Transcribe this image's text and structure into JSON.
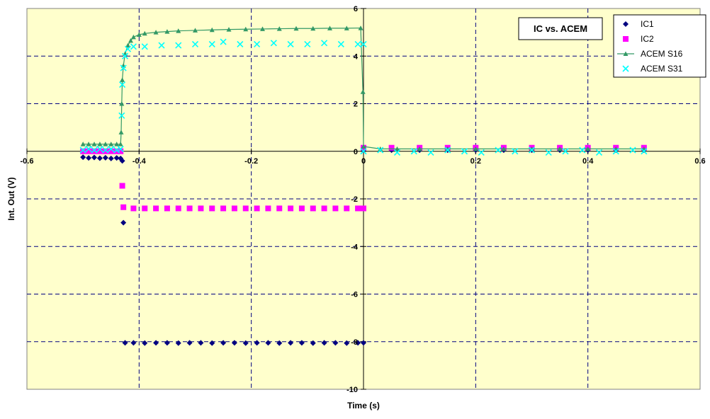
{
  "chart_data": {
    "type": "scatter",
    "title": "IC vs. ACEM",
    "xlabel": "Time (s)",
    "ylabel": "Int. Out (V)",
    "xlim": [
      -0.6,
      0.6
    ],
    "ylim": [
      -10,
      6
    ],
    "x_ticks": [
      -0.6,
      -0.4,
      -0.2,
      0,
      0.2,
      0.4,
      0.6
    ],
    "x_tick_labels": [
      "-0.6",
      "-0.4",
      "-0.2",
      "0",
      "0.2",
      "0.4",
      "0.6"
    ],
    "y_ticks": [
      -10,
      -8,
      -6,
      -4,
      -2,
      0,
      2,
      4,
      6
    ],
    "y_tick_labels": [
      "-10",
      "-8",
      "-6",
      "-4",
      "-2",
      "0",
      "2",
      "4",
      "6"
    ],
    "grid": true,
    "legend_position": "top-right",
    "plot_background": "#ffffcc",
    "series": [
      {
        "name": "IC1",
        "color": "#000080",
        "marker": "diamond",
        "points": [
          [
            -0.5,
            -0.25
          ],
          [
            -0.49,
            -0.28
          ],
          [
            -0.48,
            -0.26
          ],
          [
            -0.47,
            -0.29
          ],
          [
            -0.46,
            -0.27
          ],
          [
            -0.45,
            -0.3
          ],
          [
            -0.44,
            -0.28
          ],
          [
            -0.433,
            -0.3
          ],
          [
            -0.43,
            -0.4
          ],
          [
            -0.428,
            -3.0
          ],
          [
            -0.425,
            -8.05
          ],
          [
            -0.41,
            -8.05
          ],
          [
            -0.39,
            -8.06
          ],
          [
            -0.37,
            -8.05
          ],
          [
            -0.35,
            -8.05
          ],
          [
            -0.33,
            -8.06
          ],
          [
            -0.31,
            -8.05
          ],
          [
            -0.29,
            -8.05
          ],
          [
            -0.27,
            -8.06
          ],
          [
            -0.25,
            -8.05
          ],
          [
            -0.23,
            -8.05
          ],
          [
            -0.21,
            -8.06
          ],
          [
            -0.19,
            -8.05
          ],
          [
            -0.17,
            -8.05
          ],
          [
            -0.15,
            -8.06
          ],
          [
            -0.13,
            -8.05
          ],
          [
            -0.11,
            -8.05
          ],
          [
            -0.09,
            -8.06
          ],
          [
            -0.07,
            -8.05
          ],
          [
            -0.05,
            -8.05
          ],
          [
            -0.03,
            -8.06
          ],
          [
            -0.01,
            -8.05
          ],
          [
            0,
            -8.05
          ],
          [
            0.0,
            0.05
          ],
          [
            0.05,
            0.05
          ],
          [
            0.1,
            0.05
          ],
          [
            0.15,
            0.05
          ],
          [
            0.2,
            0.05
          ],
          [
            0.25,
            0.05
          ],
          [
            0.3,
            0.05
          ],
          [
            0.35,
            0.05
          ],
          [
            0.4,
            0.05
          ],
          [
            0.45,
            0.05
          ],
          [
            0.5,
            0.05
          ]
        ]
      },
      {
        "name": "IC2",
        "color": "#ff00ff",
        "marker": "square",
        "points": [
          [
            -0.5,
            0.0
          ],
          [
            -0.49,
            0.0
          ],
          [
            -0.48,
            0.0
          ],
          [
            -0.47,
            0.0
          ],
          [
            -0.46,
            0.0
          ],
          [
            -0.45,
            0.0
          ],
          [
            -0.44,
            0.0
          ],
          [
            -0.433,
            0.0
          ],
          [
            -0.43,
            -1.45
          ],
          [
            -0.428,
            -2.35
          ],
          [
            -0.41,
            -2.4
          ],
          [
            -0.39,
            -2.4
          ],
          [
            -0.37,
            -2.4
          ],
          [
            -0.35,
            -2.4
          ],
          [
            -0.33,
            -2.4
          ],
          [
            -0.31,
            -2.4
          ],
          [
            -0.29,
            -2.4
          ],
          [
            -0.27,
            -2.4
          ],
          [
            -0.25,
            -2.4
          ],
          [
            -0.23,
            -2.4
          ],
          [
            -0.21,
            -2.4
          ],
          [
            -0.19,
            -2.4
          ],
          [
            -0.17,
            -2.4
          ],
          [
            -0.15,
            -2.4
          ],
          [
            -0.13,
            -2.4
          ],
          [
            -0.11,
            -2.4
          ],
          [
            -0.09,
            -2.4
          ],
          [
            -0.07,
            -2.4
          ],
          [
            -0.05,
            -2.4
          ],
          [
            -0.03,
            -2.4
          ],
          [
            -0.01,
            -2.4
          ],
          [
            0,
            -2.4
          ],
          [
            0.0,
            0.15
          ],
          [
            0.05,
            0.15
          ],
          [
            0.1,
            0.15
          ],
          [
            0.15,
            0.15
          ],
          [
            0.2,
            0.15
          ],
          [
            0.25,
            0.15
          ],
          [
            0.3,
            0.15
          ],
          [
            0.35,
            0.15
          ],
          [
            0.4,
            0.15
          ],
          [
            0.45,
            0.15
          ],
          [
            0.5,
            0.15
          ]
        ]
      },
      {
        "name": "ACEM S16",
        "color": "#339966",
        "marker": "triangle",
        "line": true,
        "points": [
          [
            -0.5,
            0.3
          ],
          [
            -0.49,
            0.3
          ],
          [
            -0.48,
            0.3
          ],
          [
            -0.47,
            0.3
          ],
          [
            -0.46,
            0.3
          ],
          [
            -0.45,
            0.3
          ],
          [
            -0.44,
            0.3
          ],
          [
            -0.433,
            0.3
          ],
          [
            -0.432,
            0.8
          ],
          [
            -0.431,
            2.0
          ],
          [
            -0.43,
            3.0
          ],
          [
            -0.428,
            3.6
          ],
          [
            -0.425,
            4.1
          ],
          [
            -0.42,
            4.45
          ],
          [
            -0.415,
            4.65
          ],
          [
            -0.41,
            4.8
          ],
          [
            -0.4,
            4.9
          ],
          [
            -0.39,
            4.95
          ],
          [
            -0.37,
            5.0
          ],
          [
            -0.35,
            5.03
          ],
          [
            -0.33,
            5.06
          ],
          [
            -0.3,
            5.08
          ],
          [
            -0.27,
            5.1
          ],
          [
            -0.24,
            5.12
          ],
          [
            -0.21,
            5.13
          ],
          [
            -0.18,
            5.14
          ],
          [
            -0.15,
            5.15
          ],
          [
            -0.12,
            5.16
          ],
          [
            -0.09,
            5.16
          ],
          [
            -0.06,
            5.17
          ],
          [
            -0.03,
            5.17
          ],
          [
            -0.005,
            5.18
          ],
          [
            -0.001,
            2.5
          ],
          [
            0.0,
            0.2
          ],
          [
            0.03,
            0.1
          ],
          [
            0.06,
            0.1
          ],
          [
            0.1,
            0.1
          ],
          [
            0.15,
            0.1
          ],
          [
            0.2,
            0.1
          ],
          [
            0.25,
            0.1
          ],
          [
            0.3,
            0.1
          ],
          [
            0.35,
            0.1
          ],
          [
            0.4,
            0.1
          ],
          [
            0.45,
            0.1
          ],
          [
            0.5,
            0.1
          ]
        ]
      },
      {
        "name": "ACEM S31",
        "color": "#00ffff",
        "marker": "x",
        "points": [
          [
            -0.5,
            0.05
          ],
          [
            -0.49,
            0.1
          ],
          [
            -0.48,
            0.05
          ],
          [
            -0.47,
            0.1
          ],
          [
            -0.46,
            0.05
          ],
          [
            -0.45,
            0.1
          ],
          [
            -0.44,
            0.05
          ],
          [
            -0.433,
            0.1
          ],
          [
            -0.431,
            1.5
          ],
          [
            -0.43,
            2.8
          ],
          [
            -0.428,
            3.5
          ],
          [
            -0.425,
            4.0
          ],
          [
            -0.42,
            4.3
          ],
          [
            -0.41,
            4.4
          ],
          [
            -0.39,
            4.4
          ],
          [
            -0.36,
            4.45
          ],
          [
            -0.33,
            4.45
          ],
          [
            -0.3,
            4.5
          ],
          [
            -0.27,
            4.5
          ],
          [
            -0.25,
            4.6
          ],
          [
            -0.22,
            4.5
          ],
          [
            -0.19,
            4.5
          ],
          [
            -0.16,
            4.55
          ],
          [
            -0.13,
            4.5
          ],
          [
            -0.1,
            4.5
          ],
          [
            -0.07,
            4.55
          ],
          [
            -0.04,
            4.5
          ],
          [
            -0.01,
            4.5
          ],
          [
            0,
            4.5
          ],
          [
            0.0,
            0.0
          ],
          [
            0.03,
            0.05
          ],
          [
            0.06,
            -0.05
          ],
          [
            0.09,
            0.0
          ],
          [
            0.12,
            -0.05
          ],
          [
            0.15,
            0.05
          ],
          [
            0.18,
            0.0
          ],
          [
            0.21,
            -0.05
          ],
          [
            0.24,
            0.05
          ],
          [
            0.27,
            0.0
          ],
          [
            0.3,
            0.05
          ],
          [
            0.33,
            -0.05
          ],
          [
            0.36,
            0.0
          ],
          [
            0.39,
            0.05
          ],
          [
            0.42,
            -0.05
          ],
          [
            0.45,
            0.0
          ],
          [
            0.48,
            0.05
          ],
          [
            0.5,
            0.0
          ]
        ]
      }
    ]
  }
}
